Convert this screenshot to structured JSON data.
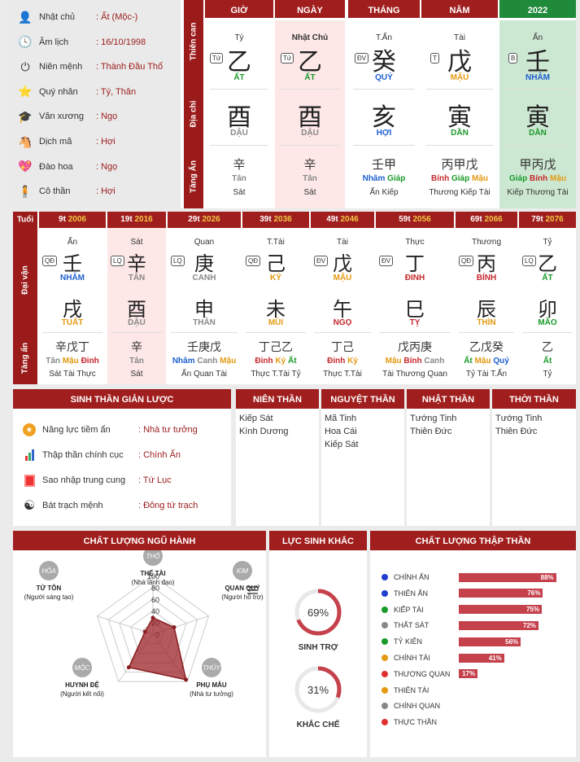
{
  "info": [
    {
      "icon": "user-icon",
      "glyph": "👤",
      "label": "Nhật chủ",
      "value": ": Ất (Mộc-)"
    },
    {
      "icon": "clock-icon",
      "glyph": "🕓",
      "label": "Âm lịch",
      "value": ": 16/10/1998"
    },
    {
      "icon": "power-icon",
      "glyph": "⏻",
      "label": "Niên mệnh",
      "value": ": Thành Đầu Thổ"
    },
    {
      "icon": "star-icon",
      "glyph": "⭐",
      "label": "Quý nhân",
      "value": ": Tý, Thân"
    },
    {
      "icon": "graduation-cap-icon",
      "glyph": "🎓",
      "label": "Văn xương",
      "value": ": Ngọ"
    },
    {
      "icon": "horse-icon",
      "glyph": "🐴",
      "label": "Dịch mã",
      "value": ": Hợi"
    },
    {
      "icon": "heart-icon",
      "glyph": "💖",
      "label": "Đào hoa",
      "value": ": Ngọ"
    },
    {
      "icon": "person-icon",
      "glyph": "🧍",
      "label": "Cô thần",
      "value": ": Hợi"
    }
  ],
  "side": {
    "thien_can": "Thiên can",
    "dia_chi": "Địa chi",
    "tang_an": "Tàng Ẩn",
    "tuoi": "Tuổi",
    "dai_van": "Đại vận",
    "tang_an2": "Tàng ẩn"
  },
  "pillars": [
    {
      "hdr": "GIỜ",
      "top": "Tý",
      "tag": "Tứ",
      "can": "乙",
      "can_vi": "ẤT",
      "can_c": "green",
      "chi": "酉",
      "chi_vi": "DẬU",
      "chi_c": "gray",
      "ta": "辛",
      "ta_vi": [
        {
          "t": "Tân",
          "c": "gray"
        }
      ],
      "ta_th": "Sát"
    },
    {
      "hdr": "NGÀY",
      "top": "Nhật Chủ",
      "tag": "Tứ",
      "can": "乙",
      "can_vi": "ẤT",
      "can_c": "green",
      "chi": "酉",
      "chi_vi": "DẬU",
      "chi_c": "gray",
      "ta": "辛",
      "ta_vi": [
        {
          "t": "Tân",
          "c": "gray"
        }
      ],
      "ta_th": "Sát"
    },
    {
      "hdr": "THÁNG",
      "top": "T.Ấn",
      "tag": "ĐV",
      "can": "癸",
      "can_vi": "QUÝ",
      "can_c": "blue",
      "chi": "亥",
      "chi_vi": "HỢI",
      "chi_c": "blue",
      "ta": "壬甲",
      "ta_vi": [
        {
          "t": "Nhâm",
          "c": "blue"
        },
        {
          "t": "Giáp",
          "c": "green"
        }
      ],
      "ta_th": "Ấn Kiếp"
    },
    {
      "hdr": "NĂM",
      "top": "Tài",
      "tag": "T",
      "can": "戊",
      "can_vi": "MẬU",
      "can_c": "orange",
      "chi": "寅",
      "chi_vi": "DẦN",
      "chi_c": "green",
      "ta": "丙甲戊",
      "ta_vi": [
        {
          "t": "Bính",
          "c": "dred"
        },
        {
          "t": "Giáp",
          "c": "green"
        },
        {
          "t": "Mậu",
          "c": "orange"
        }
      ],
      "ta_th": "Thương Kiếp Tài"
    },
    {
      "hdr": "2022",
      "top": "Ấn",
      "tag": "B",
      "can": "壬",
      "can_vi": "NHÂM",
      "can_c": "blue",
      "chi": "寅",
      "chi_vi": "DẦN",
      "chi_c": "green",
      "ta": "甲丙戊",
      "ta_vi": [
        {
          "t": "Giáp",
          "c": "green"
        },
        {
          "t": "Bính",
          "c": "dred"
        },
        {
          "t": "Mậu",
          "c": "orange"
        }
      ],
      "ta_th": "Kiếp Thương Tài"
    }
  ],
  "daivan": [
    {
      "age": "9t",
      "year": "2006",
      "top": "Ấn",
      "tag": "QĐ",
      "can": "壬",
      "can_vi": "NHÂM",
      "can_c": "blue",
      "chi": "戌",
      "chi_vi": "TUẤT",
      "chi_c": "orange",
      "ta": "辛戊丁",
      "ta_vi": [
        {
          "t": "Tân",
          "c": "gray"
        },
        {
          "t": "Mậu",
          "c": "orange"
        },
        {
          "t": "Đinh",
          "c": "dred"
        }
      ],
      "ta_th": "Sát Tài Thực"
    },
    {
      "age": "19t",
      "year": "2016",
      "top": "Sát",
      "tag": "LQ",
      "can": "辛",
      "can_vi": "TÂN",
      "can_c": "gray",
      "chi": "酉",
      "chi_vi": "DẬU",
      "chi_c": "gray",
      "ta": "辛",
      "ta_vi": [
        {
          "t": "Tân",
          "c": "gray"
        }
      ],
      "ta_th": "Sát"
    },
    {
      "age": "29t",
      "year": "2026",
      "top": "Quan",
      "tag": "LQ",
      "can": "庚",
      "can_vi": "CANH",
      "can_c": "gray",
      "chi": "申",
      "chi_vi": "THÂN",
      "chi_c": "gray",
      "ta": "壬庚戊",
      "ta_vi": [
        {
          "t": "Nhâm",
          "c": "blue"
        },
        {
          "t": "Canh",
          "c": "gray"
        },
        {
          "t": "Mậu",
          "c": "orange"
        }
      ],
      "ta_th": "Ấn Quan Tài"
    },
    {
      "age": "39t",
      "year": "2036",
      "top": "T.Tài",
      "tag": "QĐ",
      "can": "己",
      "can_vi": "KỶ",
      "can_c": "orange",
      "chi": "未",
      "chi_vi": "MÙI",
      "chi_c": "orange",
      "ta": "丁己乙",
      "ta_vi": [
        {
          "t": "Đinh",
          "c": "dred"
        },
        {
          "t": "Kỷ",
          "c": "orange"
        },
        {
          "t": "Ất",
          "c": "green"
        }
      ],
      "ta_th": "Thực T.Tài Tỷ"
    },
    {
      "age": "49t",
      "year": "2046",
      "top": "Tài",
      "tag": "ĐV",
      "can": "戊",
      "can_vi": "MẬU",
      "can_c": "orange",
      "chi": "午",
      "chi_vi": "NGỌ",
      "chi_c": "dred",
      "ta": "丁己",
      "ta_vi": [
        {
          "t": "Đinh",
          "c": "dred"
        },
        {
          "t": "Kỷ",
          "c": "orange"
        }
      ],
      "ta_th": "Thực T.Tài"
    },
    {
      "age": "59t",
      "year": "2056",
      "top": "Thực",
      "tag": "ĐV",
      "can": "丁",
      "can_vi": "ĐINH",
      "can_c": "dred",
      "chi": "巳",
      "chi_vi": "TỴ",
      "chi_c": "dred",
      "ta": "戊丙庚",
      "ta_vi": [
        {
          "t": "Mậu",
          "c": "orange"
        },
        {
          "t": "Bính",
          "c": "dred"
        },
        {
          "t": "Canh",
          "c": "gray"
        }
      ],
      "ta_th": "Tài Thương Quan"
    },
    {
      "age": "69t",
      "year": "2066",
      "top": "Thương",
      "tag": "QĐ",
      "can": "丙",
      "can_vi": "BÍNH",
      "can_c": "dred",
      "chi": "辰",
      "chi_vi": "THÌN",
      "chi_c": "orange",
      "ta": "乙戊癸",
      "ta_vi": [
        {
          "t": "Ất",
          "c": "green"
        },
        {
          "t": "Mậu",
          "c": "orange"
        },
        {
          "t": "Quý",
          "c": "blue"
        }
      ],
      "ta_th": "Tỷ Tài T.Ấn"
    },
    {
      "age": "79t",
      "year": "2076",
      "top": "Tỷ",
      "tag": "LQ",
      "can": "乙",
      "can_vi": "ẤT",
      "can_c": "green",
      "chi": "卯",
      "chi_vi": "MÃO",
      "chi_c": "green",
      "ta": "乙",
      "ta_vi": [
        {
          "t": "Ất",
          "c": "green"
        }
      ],
      "ta_th": "Tỷ"
    }
  ],
  "sinhthan": {
    "title": "SINH THẦN GIẢN LƯỢC",
    "rows": [
      {
        "icon": "star-badge-icon",
        "label": "Năng lực tiềm ẩn",
        "value": ": Nhà tư tưởng"
      },
      {
        "icon": "bar-chart-icon",
        "label": "Thập thần chính cục",
        "value": ": Chính Ấn"
      },
      {
        "icon": "red-box-icon",
        "label": "Sao nhập trung cung",
        "value": ": Tứ Lục"
      },
      {
        "icon": "yin-yang-icon",
        "label": "Bát trạch mệnh",
        "value": ": Đông tứ trạch"
      }
    ]
  },
  "than": [
    {
      "title": "NIÊN THẦN",
      "items": [
        "Kiếp Sát",
        "Kình Dương"
      ]
    },
    {
      "title": "NGUYỆT THẦN",
      "items": [
        "Mã Tinh",
        "Hoa Cái",
        "Kiếp Sát"
      ]
    },
    {
      "title": "NHẬT THẦN",
      "items": [
        "Tướng Tinh",
        "Thiên Đức"
      ]
    },
    {
      "title": "THỜI THẦN",
      "items": [
        "Tướng Tinh",
        "Thiên Đức"
      ]
    }
  ],
  "nguhanh": {
    "title": "CHẤT LƯỢNG NGŨ HÀNH",
    "nodes": [
      {
        "el": "THỔ",
        "name": "THẾ TÀI",
        "sub": "(Nhà lãnh đạo)"
      },
      {
        "el": "KIM",
        "name": "QUAN QUÝ",
        "sub": "(Người hỗ trợ)"
      },
      {
        "el": "THỦY",
        "name": "PHỤ MẪU",
        "sub": "(Nhà tư tưởng)"
      },
      {
        "el": "MỘC",
        "name": "HUYNH ĐỆ",
        "sub": "(Người kết nối)"
      },
      {
        "el": "HỎA",
        "name": "TỬ TÔN",
        "sub": "(Người sáng tạo)"
      }
    ],
    "ticks": [
      "100",
      "80",
      "60",
      "40",
      "20",
      "0"
    ]
  },
  "chart_data": {
    "type": "radar",
    "categories": [
      "THỔ",
      "KIM",
      "THỦY",
      "MỘC",
      "HỎA"
    ],
    "values": [
      28,
      38,
      96,
      70,
      14
    ],
    "ylim": [
      0,
      100
    ]
  },
  "lucsinh": {
    "title": "LỰC SINH KHẮC",
    "items": [
      {
        "pct": 69,
        "label": "69%",
        "name": "SINH TRỢ"
      },
      {
        "pct": 31,
        "label": "31%",
        "name": "KHẮC CHẾ"
      }
    ]
  },
  "thapthan": {
    "title": "CHẤT LƯỢNG THẬP THẦN",
    "rows": [
      {
        "name": "CHÍNH ẤN",
        "color": "#1f3fcf",
        "value": 88,
        "label": "88%"
      },
      {
        "name": "THIÊN ẤN",
        "color": "#1f3fcf",
        "value": 76,
        "label": "76%"
      },
      {
        "name": "KIẾP TÀI",
        "color": "#1a9a2a",
        "value": 75,
        "label": "75%"
      },
      {
        "name": "THẤT SÁT",
        "color": "#888888",
        "value": 72,
        "label": "72%"
      },
      {
        "name": "TỶ KIÊN",
        "color": "#1a9a2a",
        "value": 56,
        "label": "56%"
      },
      {
        "name": "CHÍNH TÀI",
        "color": "#e39a12",
        "value": 41,
        "label": "41%"
      },
      {
        "name": "THƯƠNG QUAN",
        "color": "#e03030",
        "value": 17,
        "label": "17%"
      },
      {
        "name": "THIÊN TÀI",
        "color": "#e39a12",
        "value": 0,
        "label": ""
      },
      {
        "name": "CHÍNH QUAN",
        "color": "#888888",
        "value": 0,
        "label": ""
      },
      {
        "name": "THỰC THẦN",
        "color": "#e03030",
        "value": 0,
        "label": ""
      }
    ]
  }
}
